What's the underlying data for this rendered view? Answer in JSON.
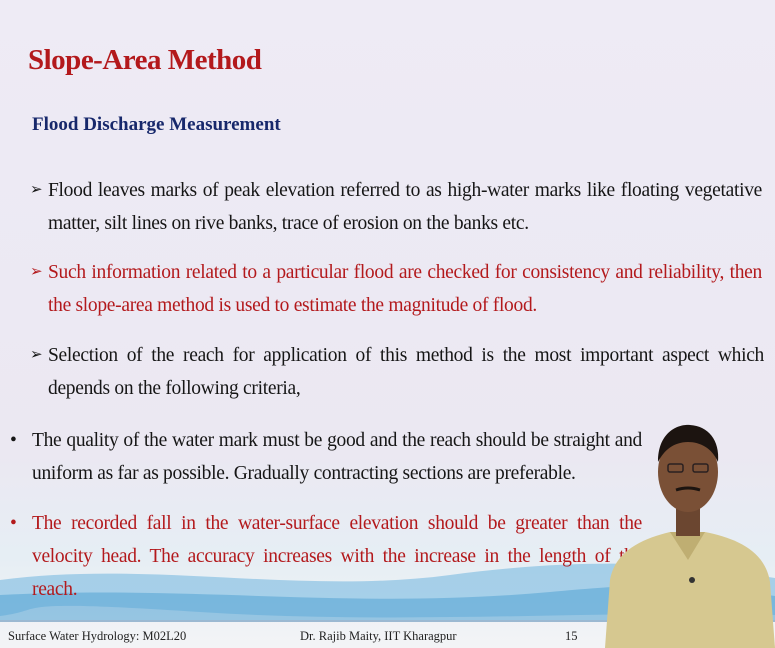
{
  "header": {
    "title": "Slope-Area Method",
    "subtitle": "Flood Discharge Measurement"
  },
  "points": [
    "Flood leaves marks of peak elevation referred to as high-water marks like floating vegetative matter, silt lines on rive banks, trace of erosion on the banks etc.",
    "Such information related to a particular flood are checked for consistency and reliability, then the slope-area method is used to estimate the magnitude of flood.",
    "Selection of the reach for application of this method is the most important aspect which depends on the following criteria,"
  ],
  "criteria": [
    "The quality of the water mark must be good and the reach should be straight and uniform as far as possible. Gradually contracting sections are preferable.",
    "The recorded fall in the water-surface elevation should be greater than the velocity head. The accuracy increases with the increase in the length of the reach."
  ],
  "footer": {
    "course": "Surface Water Hydrology: M02L20",
    "author": "Dr. Rajib Maity, IIT Kharagpur",
    "page": 15
  }
}
